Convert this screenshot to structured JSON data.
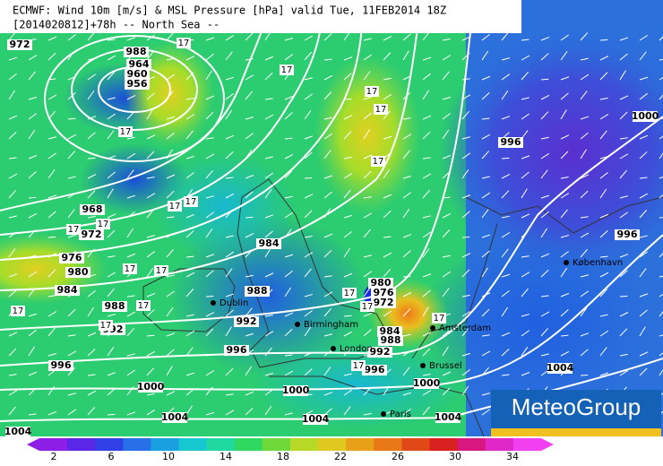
{
  "header": {
    "line1": "ECMWF: Wind 10m [m/s] & MSL Pressure [hPa] valid Tue, 11FEB2014 18Z",
    "line2": "[2014020812]+78h -- North Sea --"
  },
  "isobar_labels": [
    972,
    988,
    964,
    960,
    956,
    968,
    972,
    976,
    980,
    984,
    988,
    992,
    996,
    1000,
    1004,
    1004,
    984,
    988,
    992,
    996,
    980,
    976,
    972,
    984,
    988,
    992,
    996,
    1000,
    1000,
    1004,
    1004,
    996,
    996,
    1000,
    1004
  ],
  "wind_labels": [
    17,
    17,
    17,
    17,
    17,
    17,
    17,
    17,
    17,
    17,
    17,
    17,
    17,
    17,
    17,
    17,
    17,
    17,
    17
  ],
  "cities": [
    "Dublin",
    "Birmingham",
    "London",
    "Amsterdam",
    "Brussel",
    "Paris",
    "København"
  ],
  "colorbar": {
    "labels": [
      2,
      6,
      10,
      14,
      18,
      22,
      26,
      30,
      34
    ]
  },
  "logo": "MeteoGroup"
}
